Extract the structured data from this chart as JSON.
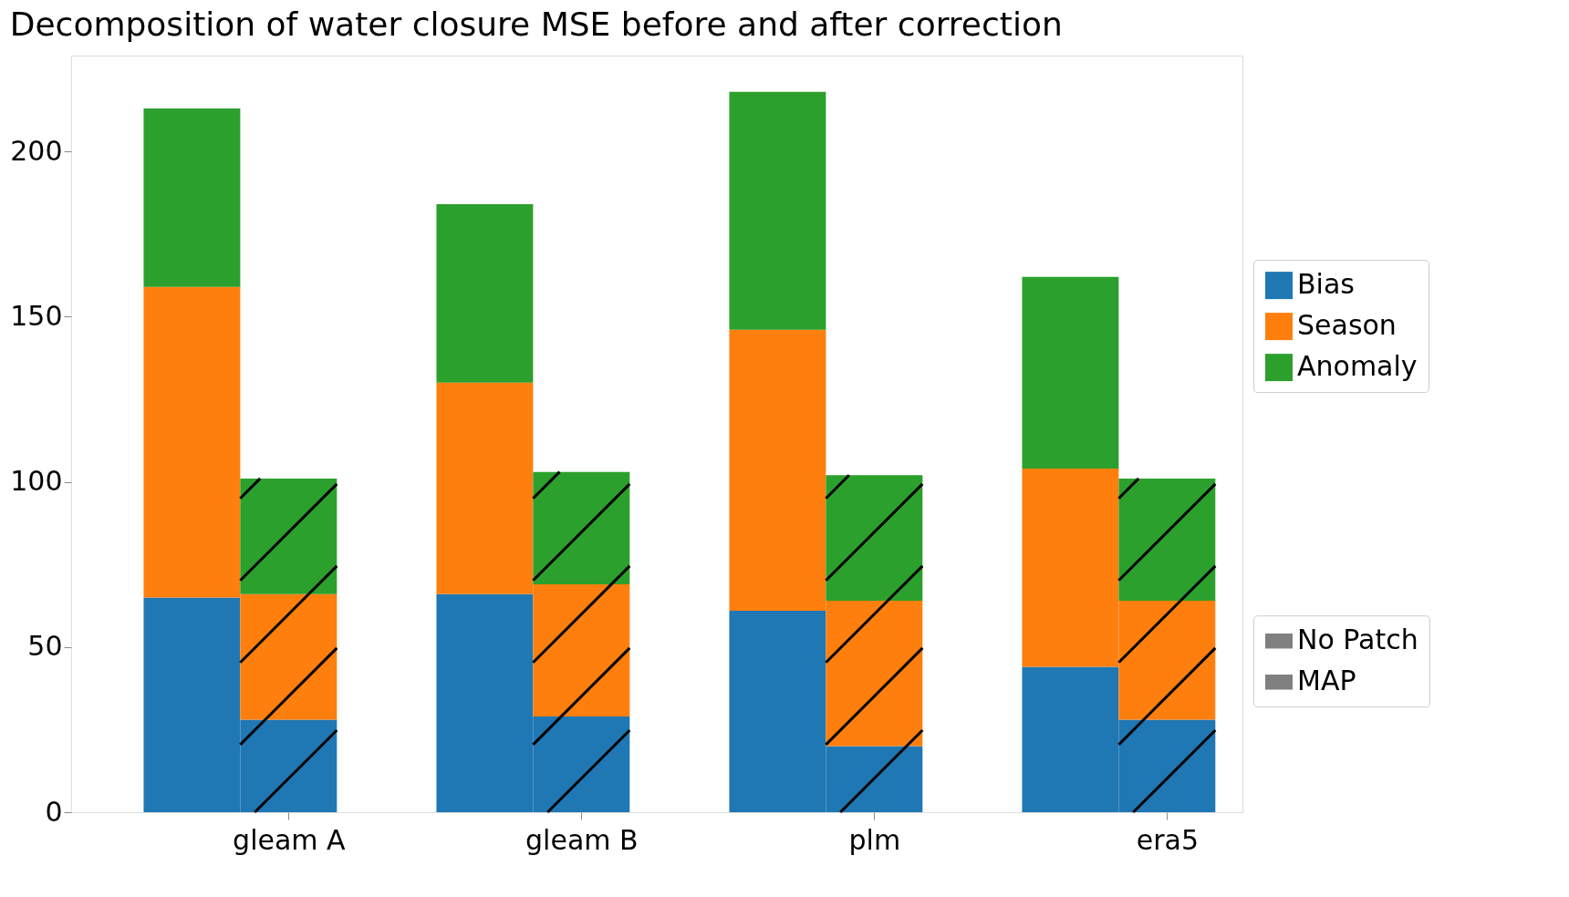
{
  "chart_data": {
    "type": "bar",
    "title": "Decomposition of water closure MSE before and after correction",
    "categories": [
      null,
      "gleam A",
      null,
      "gleam B",
      null,
      "plm",
      null,
      "era5"
    ],
    "stacked": true,
    "series": [
      {
        "name": "Bias",
        "color": "#1f77b4",
        "values": [
          65,
          28,
          66,
          29,
          61,
          20,
          44,
          28
        ]
      },
      {
        "name": "Season",
        "color": "#ff7f0e",
        "values": [
          94,
          38,
          64,
          40,
          85,
          44,
          60,
          36
        ]
      },
      {
        "name": "Anomaly",
        "color": "#2ca02c",
        "values": [
          54,
          35,
          54,
          34,
          72,
          38,
          58,
          37
        ]
      }
    ],
    "annotations": [
      "No Patch",
      "MAP"
    ],
    "ylim": [
      0,
      229
    ],
    "yticks": [
      0,
      50,
      100,
      150,
      200
    ],
    "grid": false,
    "legend": "right"
  }
}
